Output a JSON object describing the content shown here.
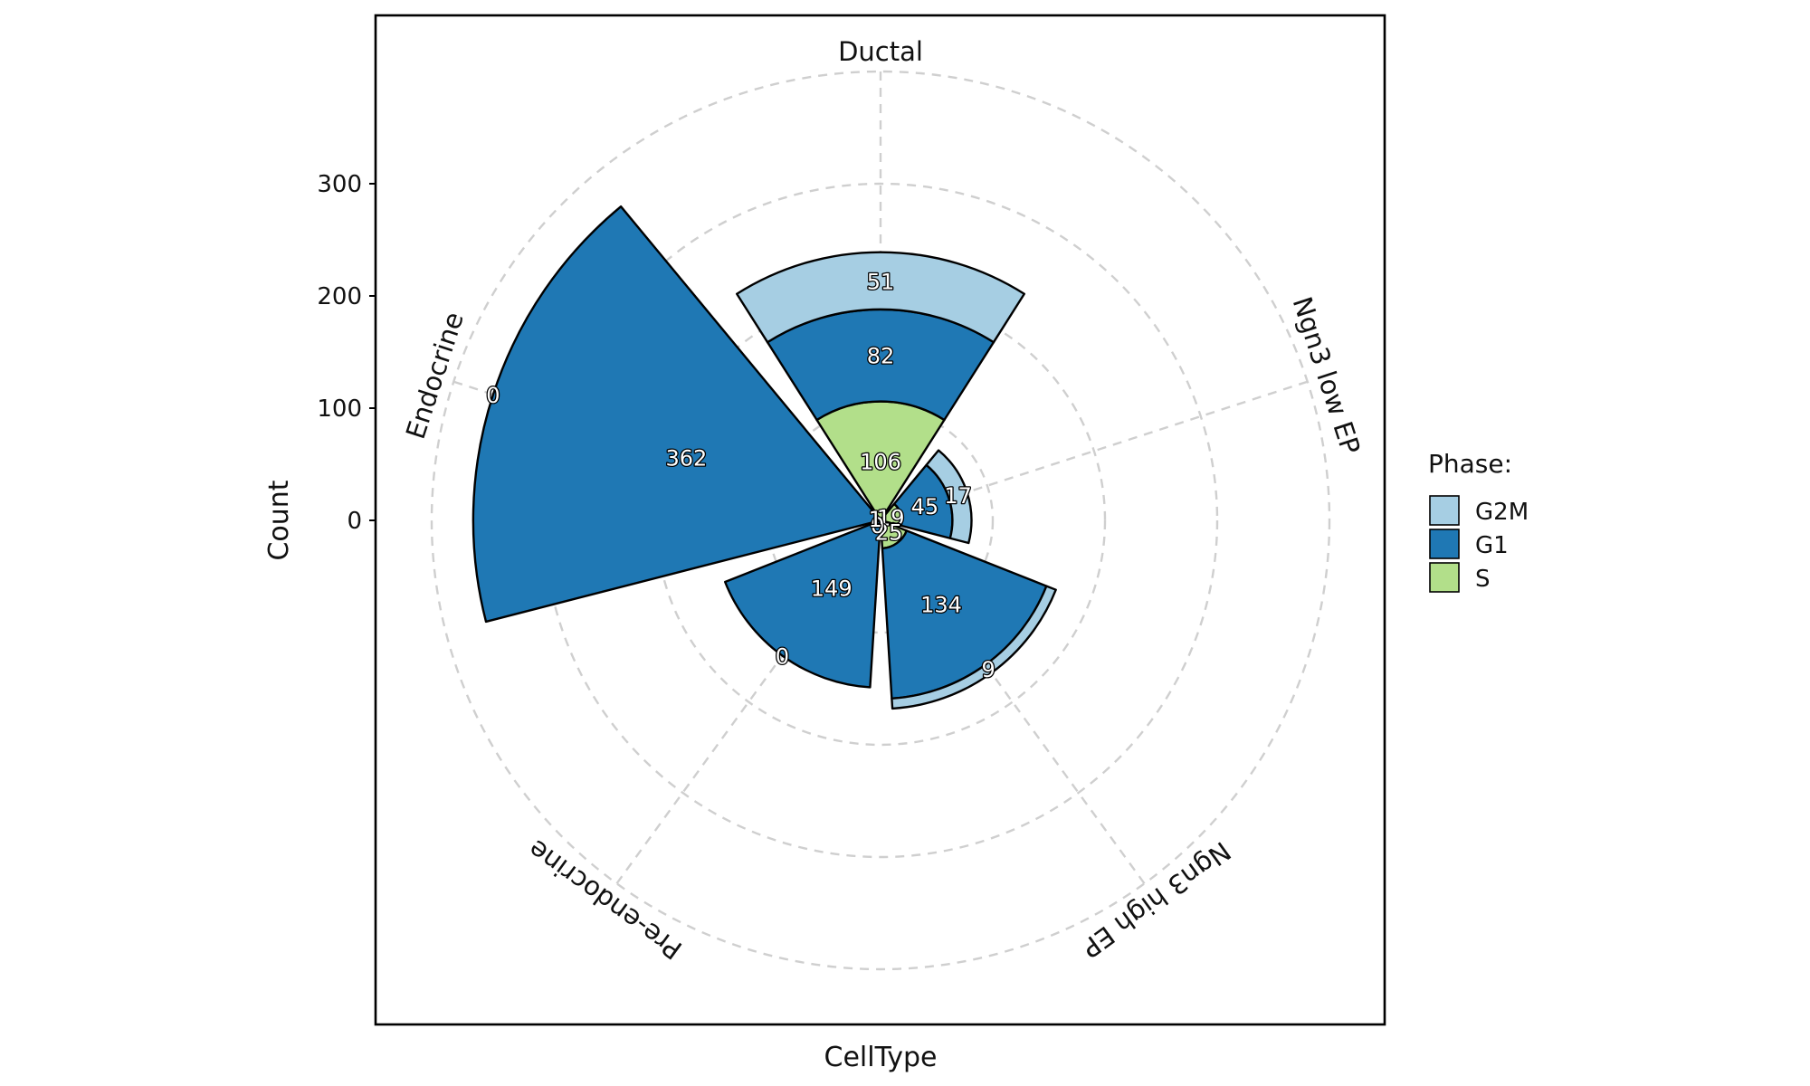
{
  "chart_data": {
    "type": "bar",
    "coordinate": "polar",
    "xlabel": "CellType",
    "ylabel": "Count",
    "legend_title": "Phase:",
    "legend_position": "right",
    "grid": true,
    "stacked": true,
    "ylim": [
      0,
      400
    ],
    "y_ticks": [
      0,
      100,
      200,
      300
    ],
    "categories": [
      "Ductal",
      "Ngn3 low EP",
      "Ngn3 high EP",
      "Pre-endocrine",
      "Endocrine"
    ],
    "series": [
      {
        "name": "G2M",
        "color": "#a6cee3",
        "values": [
          51,
          17,
          9,
          0,
          0
        ]
      },
      {
        "name": "G1",
        "color": "#1f78b4",
        "values": [
          82,
          45,
          134,
          149,
          362
        ]
      },
      {
        "name": "S",
        "color": "#b2df8a",
        "values": [
          106,
          19,
          25,
          0,
          1
        ]
      }
    ]
  }
}
